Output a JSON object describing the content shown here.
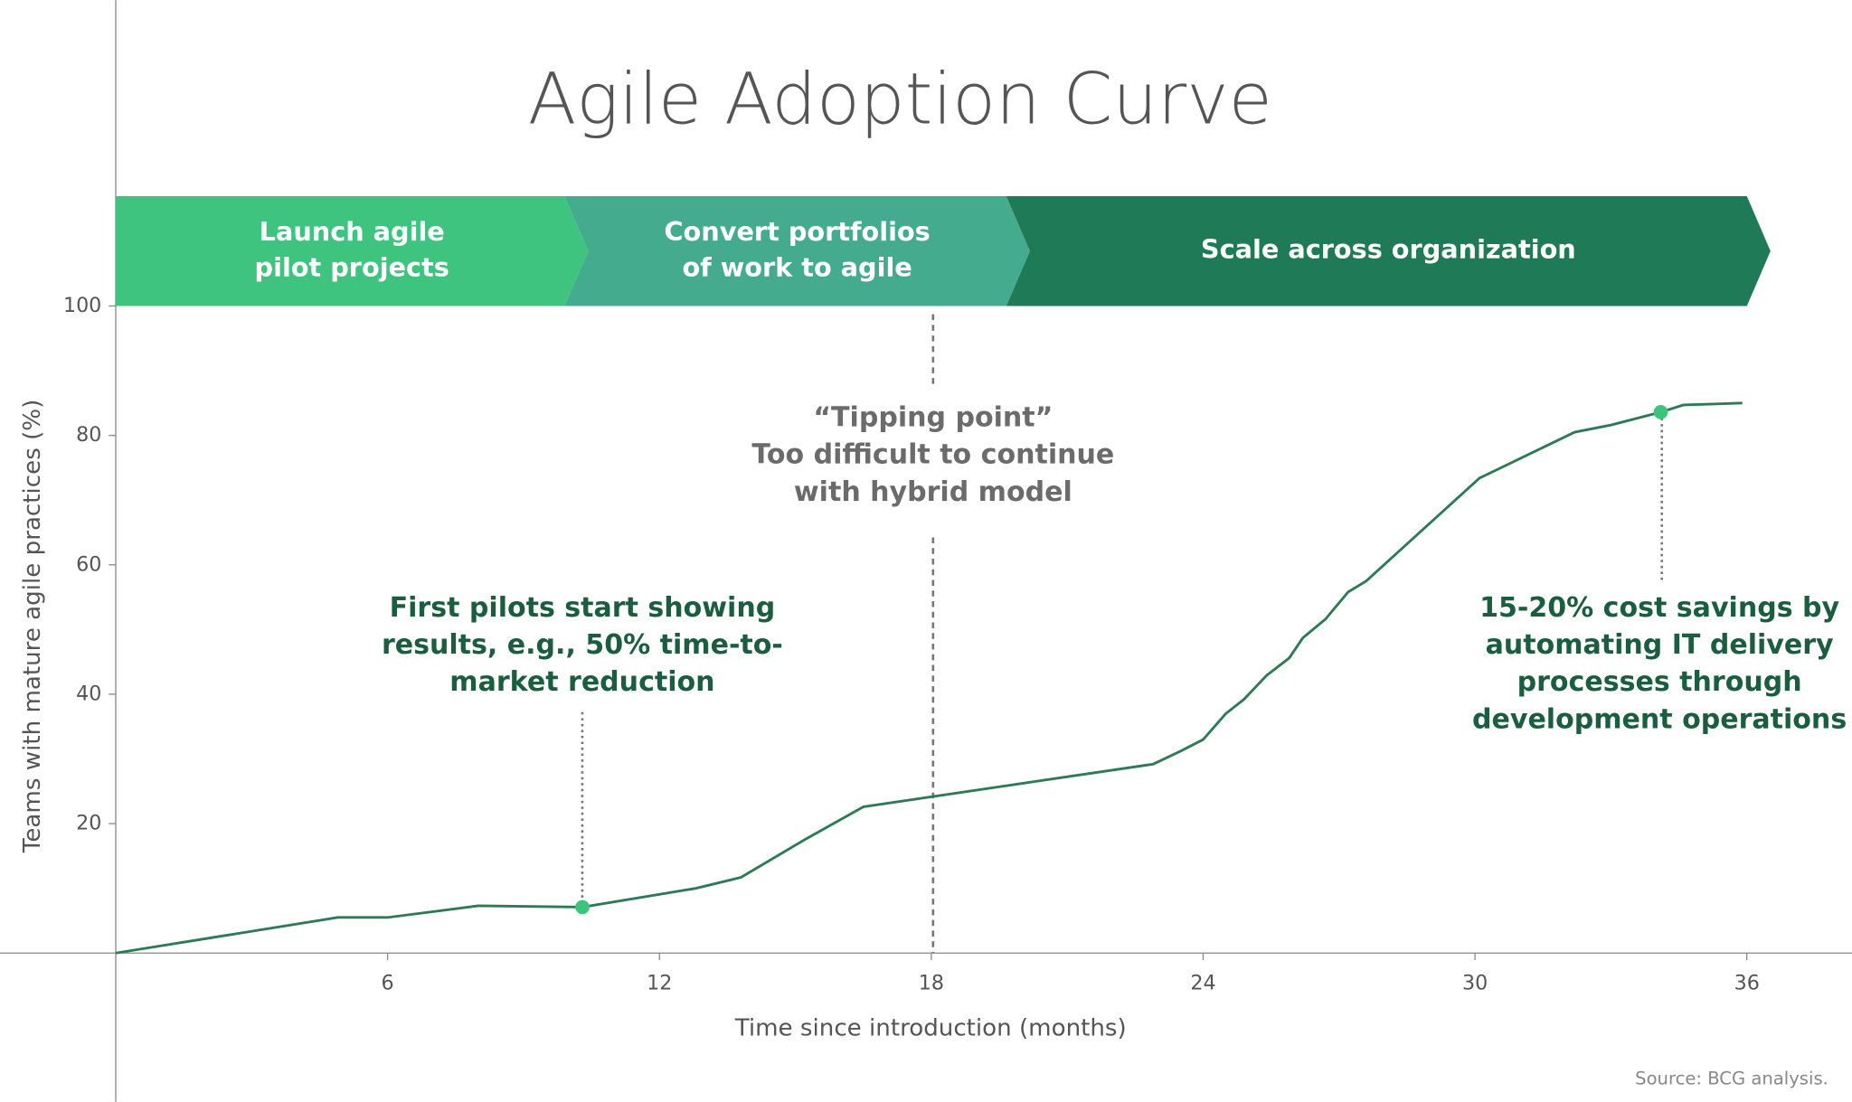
{
  "chart_data": {
    "type": "line",
    "title": "Agile Adoption Curve",
    "x_label": "Time since introduction (months)",
    "y_label": "Teams with mature agile practices (%)",
    "xlim": [
      0,
      36.5
    ],
    "ylim": [
      0,
      100
    ],
    "xticks": [
      6,
      12,
      18,
      24,
      30,
      36
    ],
    "yticks": [
      20,
      40,
      60,
      80,
      100
    ],
    "series": [
      {
        "name": "Teams with mature agile practices",
        "color": "#2d7a55",
        "x": [
          0,
          4.9,
          6.0,
          8.0,
          10.3,
          12.8,
          13.8,
          15.2,
          16.5,
          22.9,
          23.5,
          24.0,
          24.5,
          24.9,
          25.4,
          25.9,
          26.2,
          26.7,
          27.2,
          27.6,
          30.1,
          32.2,
          33.0,
          34.1,
          34.6,
          35.9
        ],
        "values": [
          0,
          5.5,
          5.5,
          7.3,
          7.1,
          10.0,
          11.7,
          17.5,
          22.6,
          29.2,
          31.2,
          33.0,
          37.0,
          39.2,
          42.9,
          45.6,
          48.7,
          51.6,
          55.8,
          57.5,
          73.4,
          80.5,
          81.6,
          83.6,
          84.7,
          85.0
        ]
      }
    ],
    "highlights": {
      "color": "#3cc47c",
      "x": [
        10.3,
        34.1
      ],
      "values": [
        7.1,
        83.6
      ]
    },
    "phases": [
      {
        "lines": [
          "Launch agile",
          "pilot projects"
        ],
        "color": "#3ec47e"
      },
      {
        "lines": [
          "Convert portfolios",
          "of work to agile"
        ],
        "color": "#45ab8f"
      },
      {
        "lines": [
          "Scale across organization"
        ],
        "color": "#1e7a57"
      }
    ],
    "annotations": [
      {
        "lines": [
          "First pilots start showing",
          "results, e.g., 50% time-to-",
          "market reduction"
        ],
        "color": "#1b5e3f"
      },
      {
        "lines": [
          "“Tipping point”",
          "Too difficult to continue",
          "with hybrid model"
        ],
        "color": "#6b6b6b"
      },
      {
        "lines": [
          "15-20% cost savings by",
          "automating IT delivery",
          "processes through",
          "development operations"
        ],
        "color": "#1b5e3f"
      }
    ],
    "source": "Source: BCG analysis."
  }
}
